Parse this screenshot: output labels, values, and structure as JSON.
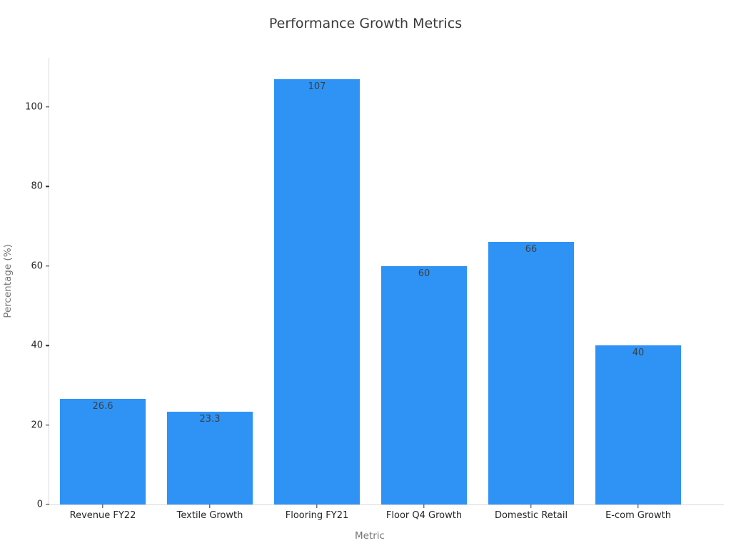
{
  "chart_data": {
    "type": "bar",
    "title": "Performance Growth Metrics",
    "xlabel": "Metric",
    "ylabel": "Percentage (%)",
    "categories": [
      "Revenue FY22",
      "Textile Growth",
      "Flooring FY21",
      "Floor Q4 Growth",
      "Domestic Retail",
      "E-com Growth"
    ],
    "values": [
      26.6,
      23.3,
      107,
      60,
      66,
      40
    ],
    "value_labels": [
      "26.6",
      "23.3",
      "107",
      "60",
      "66",
      "40"
    ],
    "yticks": [
      0,
      20,
      40,
      60,
      80,
      100
    ],
    "ylim": [
      0,
      112.35
    ],
    "grid": false,
    "legend_position": "none",
    "colors": {
      "bar": "#2e93f5",
      "title_text": "#3a3a3a",
      "tick_text": "#262626",
      "axis_label_text": "#757575",
      "value_label_text": "#3f3f3f",
      "spine": "#d9d9d9",
      "tick_mark": "#333333"
    }
  }
}
